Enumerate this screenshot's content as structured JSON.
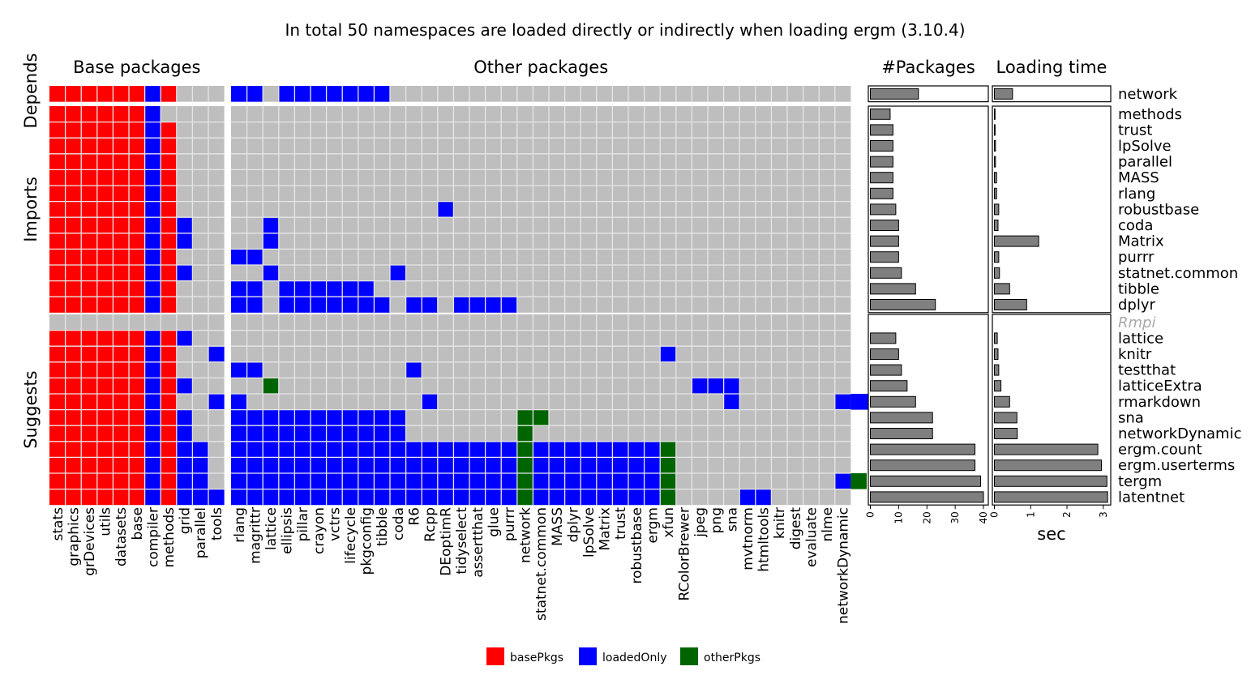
{
  "chart_data": {
    "type": "heatmap",
    "title": "In total 50 namespaces are loaded directly or indirectly when loading ergm (3.10.4)",
    "col_groups": [
      {
        "name": "Base packages",
        "columns": [
          "stats",
          "graphics",
          "grDevices",
          "utils",
          "datasets",
          "base",
          "compiler",
          "methods",
          "grid",
          "parallel",
          "tools"
        ]
      },
      {
        "name": "Other packages",
        "columns": [
          "rlang",
          "magrittr",
          "lattice",
          "ellipsis",
          "pillar",
          "crayon",
          "vctrs",
          "lifecycle",
          "pkgconfig",
          "tibble",
          "coda",
          "R6",
          "Rcpp",
          "DEoptimR",
          "tidyselect",
          "assertthat",
          "glue",
          "purrr",
          "network",
          "statnet.common",
          "MASS",
          "dplyr",
          "lpSolve",
          "Matrix",
          "trust",
          "robustbase",
          "ergm",
          "xfun",
          "RColorBrewer",
          "jpeg",
          "png",
          "sna",
          "mvtnorm",
          "htmltools",
          "knitr",
          "digest",
          "evaluate",
          "nlme",
          "networkDynamic"
        ]
      }
    ],
    "row_groups": [
      {
        "name": "Depends",
        "rows": [
          "network"
        ]
      },
      {
        "name": "Imports",
        "rows": [
          "methods",
          "trust",
          "lpSolve",
          "parallel",
          "MASS",
          "rlang",
          "robustbase",
          "coda",
          "Matrix",
          "purrr",
          "statnet.common",
          "tibble",
          "dplyr"
        ]
      },
      {
        "name": "Suggests",
        "rows": [
          "Rmpi",
          "lattice",
          "knitr",
          "testthat",
          "latticeExtra",
          "rmarkdown",
          "sna",
          "networkDynamic",
          "ergm.count",
          "ergm.userterms",
          "tergm",
          "latentnet"
        ]
      }
    ],
    "unavailable_rows": [
      "Rmpi"
    ],
    "legend": {
      "position": "bottom",
      "entries": [
        {
          "key": "B",
          "label": "basePkgs",
          "color": "#ff0000"
        },
        {
          "key": "L",
          "label": "loadedOnly",
          "color": "#0000ff"
        },
        {
          "key": "O",
          "label": "otherPkgs",
          "color": "#006400"
        }
      ]
    },
    "empty_color": "#bebebe",
    "cells": {
      "network": "BBBBBBLB...|LL.LLLLLLL.............................",
      "methods": "BBBBBBL....|.......................................",
      "trust": "BBBBBBLB...|.......................................",
      "lpSolve": "BBBBBBLB...|.......................................",
      "parallel": "BBBBBBLB...|.......................................",
      "MASS": "BBBBBBLB...|.......................................",
      "rlang": "BBBBBBLB...|.......................................",
      "robustbase": "BBBBBBLB...|.............L.........................",
      "coda": "BBBBBBLBL..|..L....................................",
      "Matrix": "BBBBBBLBL..|..L....................................",
      "purrr": "BBBBBBLB...|LL.....................................",
      "statnet.common": "BBBBBBLBL..|..L.......L............................",
      "tibble": "BBBBBBLB...|LL.LLLLLL..............................",
      "dplyr": "BBBBBBLB...|LL.LLLLLLL.LL.LLLL.....................",
      "Rmpi": "...........|.......................................",
      "lattice": "BBBBBBLBL..|.......................................",
      "knitr": "BBBBBBLB..L|...........................L...........",
      "testthat": "BBBBBBLB...|LL.........L...........................",
      "latticeExtra": "BBBBBBLBL..|..O..........................LLL.......",
      "rmarkdown": "BBBBBBLB..L|L...........L..................L......LLLL..",
      "sna": "BBBBBBLBL..|LLLLLLLLLLL.......OO...................",
      "networkDynamic": "BBBBBBLBL..|LLLLLLLLLLL.......O....................",
      "ergm.count": "BBBBBBLBLL.|LLLLLLLLLLLLLLLLLLOLLLLLLLLO............",
      "ergm.userterms": "BBBBBBLBLL.|LLLLLLLLLLLLLLLLLLOLLLLLLLLO............",
      "tergm": "BBBBBBLBLL.|LLLLLLLLLLLLLLLLLLOLLLLLLLLO..........LO",
      "latentnet": "BBBBBBLBLLL|LLLLLLLLLLLLLLLLLLOLLLLLLLLO....LL......"
    },
    "bars": {
      "packages": {
        "title": "#Packages",
        "xlim": [
          0,
          41
        ],
        "ticks": [
          0,
          10,
          20,
          30,
          40
        ],
        "xlabel": "",
        "values": {
          "network": 17,
          "methods": 7,
          "trust": 8,
          "lpSolve": 8,
          "parallel": 8,
          "MASS": 8,
          "rlang": 8,
          "robustbase": 9,
          "coda": 10,
          "Matrix": 10,
          "purrr": 10,
          "statnet.common": 11,
          "tibble": 16,
          "dplyr": 23,
          "lattice": 9,
          "knitr": 10,
          "testthat": 11,
          "latticeExtra": 13,
          "rmarkdown": 16,
          "sna": 22,
          "networkDynamic": 22,
          "ergm.count": 37,
          "ergm.userterms": 37,
          "tergm": 39,
          "latentnet": 40
        }
      },
      "time": {
        "title": "Loading time",
        "xlim": [
          0,
          3.15
        ],
        "ticks": [
          0,
          1,
          2,
          3
        ],
        "xlabel": "sec",
        "values": {
          "network": 0.5,
          "methods": 0.01,
          "trust": 0.02,
          "lpSolve": 0.03,
          "parallel": 0.03,
          "MASS": 0.06,
          "rlang": 0.06,
          "robustbase": 0.12,
          "coda": 0.1,
          "Matrix": 1.22,
          "purrr": 0.12,
          "statnet.common": 0.14,
          "tibble": 0.42,
          "dplyr": 0.89,
          "lattice": 0.08,
          "knitr": 0.1,
          "testthat": 0.12,
          "latticeExtra": 0.18,
          "rmarkdown": 0.42,
          "sna": 0.62,
          "networkDynamic": 0.63,
          "ergm.count": 2.85,
          "ergm.userterms": 2.95,
          "tergm": 3.1,
          "latentnet": 3.12
        }
      }
    }
  }
}
